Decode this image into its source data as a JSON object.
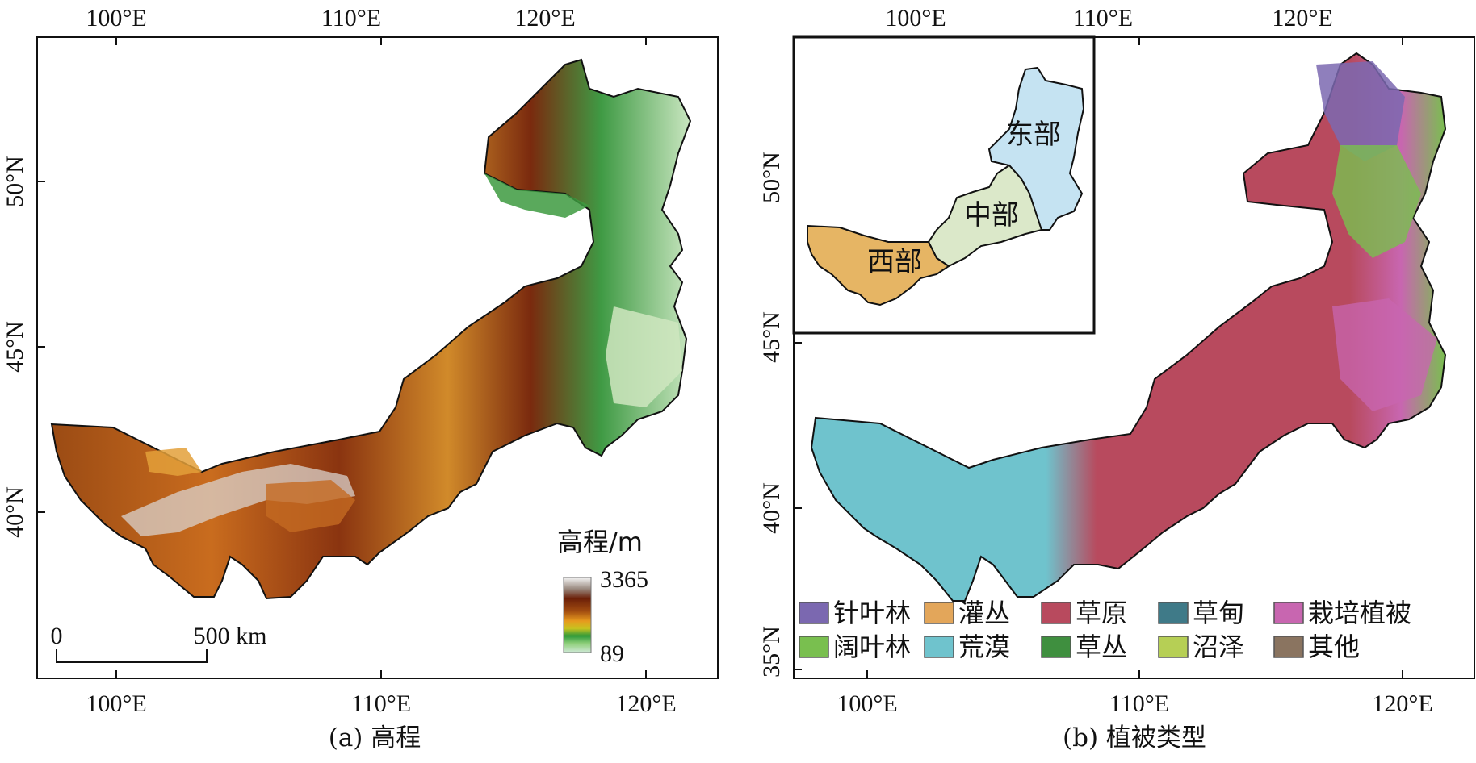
{
  "panel_a": {
    "caption": "(a) 高程",
    "top_ticks": [
      "100°E",
      "110°E",
      "120°E"
    ],
    "bottom_ticks": [
      "100°E",
      "110°E",
      "120°E"
    ],
    "left_ticks": [
      "50°N",
      "45°N",
      "40°N"
    ],
    "colorbar": {
      "title": "高程/m",
      "max_label": "3365",
      "min_label": "89",
      "max": 3365,
      "min": 89
    },
    "scalebar": {
      "start_label": "0",
      "end_label": "500 km"
    }
  },
  "panel_b": {
    "caption": "(b) 植被类型",
    "top_ticks": [
      "100°E",
      "110°E",
      "120°E"
    ],
    "bottom_ticks": [
      "100°E",
      "110°E",
      "120°E"
    ],
    "left_ticks": [
      "50°N",
      "45°N",
      "40°N",
      "35°N"
    ],
    "inset_regions": [
      "东部",
      "中部",
      "西部"
    ],
    "legend": [
      {
        "label": "针叶林",
        "color": "#7b68b0"
      },
      {
        "label": "灌丛",
        "color": "#e3a65a"
      },
      {
        "label": "草原",
        "color": "#b84a5e"
      },
      {
        "label": "草甸",
        "color": "#3f7a88"
      },
      {
        "label": "栽培植被",
        "color": "#c866b0"
      },
      {
        "label": "阔叶林",
        "color": "#79bf4f"
      },
      {
        "label": "荒漠",
        "color": "#6fc3cd"
      },
      {
        "label": "草丛",
        "color": "#3f8f3f"
      },
      {
        "label": "沼泽",
        "color": "#b6cf55"
      },
      {
        "label": "其他",
        "color": "#8a7460"
      }
    ]
  }
}
